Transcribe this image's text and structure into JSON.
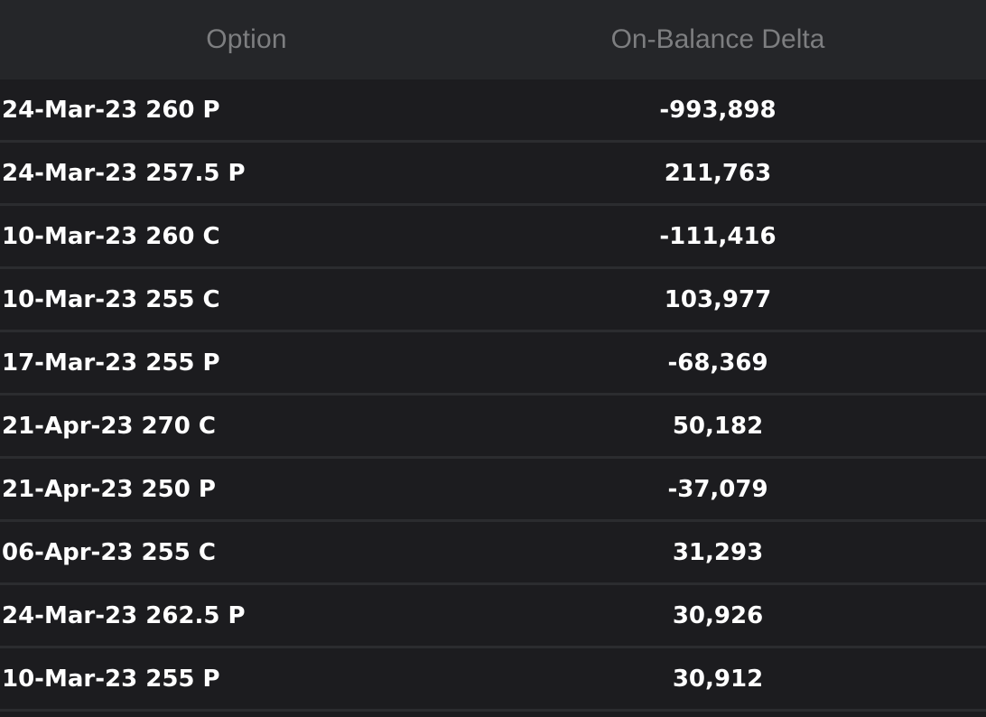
{
  "header": {
    "option_label": "Option",
    "delta_label": "On-Balance Delta"
  },
  "rows": [
    {
      "option": "24-Mar-23 260 P",
      "delta": "-993,898"
    },
    {
      "option": "24-Mar-23 257.5 P",
      "delta": "211,763"
    },
    {
      "option": "10-Mar-23 260 C",
      "delta": "-111,416"
    },
    {
      "option": "10-Mar-23 255 C",
      "delta": "103,977"
    },
    {
      "option": "17-Mar-23 255 P",
      "delta": "-68,369"
    },
    {
      "option": "21-Apr-23 270 C",
      "delta": "50,182"
    },
    {
      "option": "21-Apr-23 250 P",
      "delta": "-37,079"
    },
    {
      "option": "06-Apr-23 255 C",
      "delta": "31,293"
    },
    {
      "option": "24-Mar-23 262.5 P",
      "delta": "30,926"
    },
    {
      "option": "10-Mar-23 255 P",
      "delta": "30,912"
    }
  ]
}
